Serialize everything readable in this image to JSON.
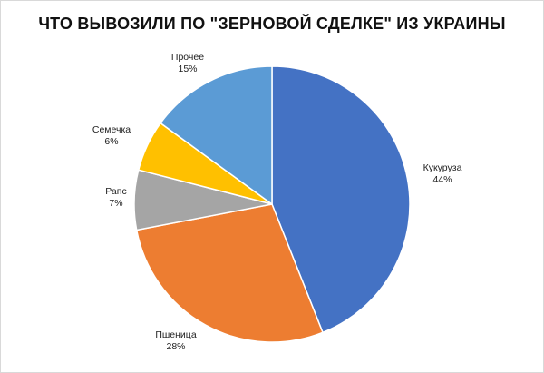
{
  "chart_data": {
    "type": "pie",
    "title": "ЧТО ВЫВОЗИЛИ ПО \"ЗЕРНОВОЙ СДЕЛКЕ\" ИЗ УКРАИНЫ",
    "slices": [
      {
        "label": "Кукуруза",
        "value": 44,
        "value_label": "44%",
        "color": "#4472C4"
      },
      {
        "label": "Пшеница",
        "value": 28,
        "value_label": "28%",
        "color": "#ED7D31"
      },
      {
        "label": "Рапс",
        "value": 7,
        "value_label": "7%",
        "color": "#A5A5A5"
      },
      {
        "label": "Семечка",
        "value": 6,
        "value_label": "6%",
        "color": "#FFC000"
      },
      {
        "label": "Прочее",
        "value": 15,
        "value_label": "15%",
        "color": "#5B9BD5"
      }
    ],
    "start_angle_deg": 0,
    "direction": "clockwise",
    "slice_border_color": "#ffffff",
    "legend": "none"
  }
}
